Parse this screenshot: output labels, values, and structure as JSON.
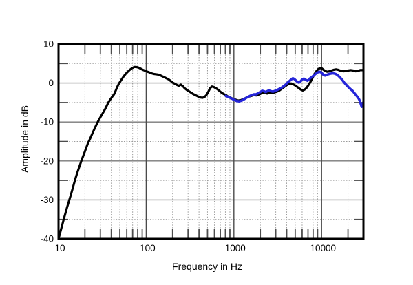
{
  "colors": {
    "background": "#ffffff",
    "border": "#000000",
    "grid_major_h": "#7a7a7a",
    "grid_major_v": "#4a4a4a",
    "grid_minor": "#999999",
    "tick": "#4d4d4d",
    "text": "#000000"
  },
  "chart_data": {
    "type": "line",
    "title": "",
    "xlabel": "Frequency in Hz",
    "ylabel": "Amplitude in dB",
    "x_scale": "log",
    "xlim": [
      10,
      30000
    ],
    "ylim": [
      -40,
      10
    ],
    "grid": {
      "x_major": [
        100,
        1000,
        10000
      ],
      "x_minor": [
        20,
        30,
        40,
        50,
        60,
        70,
        80,
        90,
        200,
        300,
        400,
        500,
        600,
        700,
        800,
        900,
        2000,
        3000,
        4000,
        5000,
        6000,
        7000,
        8000,
        9000,
        20000
      ],
      "y_major": [
        0,
        -10,
        -20,
        -30
      ],
      "y_minor": [
        5,
        -5,
        -15,
        -25,
        -35
      ]
    },
    "x_tick_labels": [
      {
        "value": 10,
        "label": "10"
      },
      {
        "value": 100,
        "label": "100"
      },
      {
        "value": 1000,
        "label": "1000"
      },
      {
        "value": 10000,
        "label": "10000"
      }
    ],
    "y_tick_labels": [
      {
        "value": 10,
        "label": "10"
      },
      {
        "value": 0,
        "label": "0"
      },
      {
        "value": -10,
        "label": "-10"
      },
      {
        "value": -20,
        "label": "-20"
      },
      {
        "value": -30,
        "label": "-30"
      },
      {
        "value": -40,
        "label": "-40"
      }
    ],
    "legend": "none",
    "series": [
      {
        "name": "black-trace",
        "color": "#000000",
        "width": 3.2,
        "points": [
          [
            10,
            -40
          ],
          [
            10.5,
            -38.2
          ],
          [
            11,
            -36.5
          ],
          [
            11.5,
            -34.9
          ],
          [
            12,
            -33.4
          ],
          [
            12.5,
            -32
          ],
          [
            13,
            -30.7
          ],
          [
            14,
            -28.3
          ],
          [
            15,
            -25.9
          ],
          [
            15.7,
            -24.3
          ],
          [
            16.5,
            -22.8
          ],
          [
            17.5,
            -21.1
          ],
          [
            18.5,
            -19.6
          ],
          [
            19.5,
            -18.2
          ],
          [
            20.5,
            -16.9
          ],
          [
            21.5,
            -15.6
          ],
          [
            23,
            -14.2
          ],
          [
            24.5,
            -12.8
          ],
          [
            26,
            -11.5
          ],
          [
            28,
            -10
          ],
          [
            30,
            -8.8
          ],
          [
            32,
            -7.7
          ],
          [
            34,
            -6.7
          ],
          [
            37,
            -5
          ],
          [
            39,
            -4.2
          ],
          [
            41,
            -3.5
          ],
          [
            43,
            -2.9
          ],
          [
            45,
            -1.9
          ],
          [
            47,
            -0.9
          ],
          [
            49,
            -0.1
          ],
          [
            52,
            0.8
          ],
          [
            55,
            1.6
          ],
          [
            58,
            2.3
          ],
          [
            61,
            2.8
          ],
          [
            65,
            3.4
          ],
          [
            69,
            3.8
          ],
          [
            73,
            4.1
          ],
          [
            77,
            4.1
          ],
          [
            81,
            4
          ],
          [
            86,
            3.7
          ],
          [
            91,
            3.4
          ],
          [
            96,
            3.2
          ],
          [
            100,
            3
          ],
          [
            107,
            2.8
          ],
          [
            115,
            2.5
          ],
          [
            123,
            2.3
          ],
          [
            132,
            2.2
          ],
          [
            141,
            2.1
          ],
          [
            150,
            1.8
          ],
          [
            160,
            1.5
          ],
          [
            170,
            1.2
          ],
          [
            181,
            0.9
          ],
          [
            191,
            0.5
          ],
          [
            200,
            0.1
          ],
          [
            212,
            -0.2
          ],
          [
            224,
            -0.5
          ],
          [
            236,
            -0.7
          ],
          [
            248,
            -0.4
          ],
          [
            261,
            -0.8
          ],
          [
            276,
            -1.4
          ],
          [
            291,
            -1.8
          ],
          [
            306,
            -2.1
          ],
          [
            322,
            -2.4
          ],
          [
            341,
            -2.8
          ],
          [
            362,
            -3.1
          ],
          [
            386,
            -3.4
          ],
          [
            411,
            -3.7
          ],
          [
            436,
            -3.8
          ],
          [
            461,
            -3.6
          ],
          [
            486,
            -3.1
          ],
          [
            511,
            -2.2
          ],
          [
            536,
            -1.3
          ],
          [
            561,
            -0.9
          ],
          [
            586,
            -1
          ],
          [
            611,
            -1.2
          ],
          [
            641,
            -1.5
          ],
          [
            676,
            -1.9
          ],
          [
            716,
            -2.4
          ],
          [
            761,
            -2.8
          ],
          [
            811,
            -3.1
          ],
          [
            861,
            -3.5
          ],
          [
            921,
            -3.8
          ],
          [
            981,
            -4.1
          ],
          [
            1050,
            -4.3
          ],
          [
            1120,
            -4.5
          ],
          [
            1200,
            -4.4
          ],
          [
            1290,
            -4.1
          ],
          [
            1380,
            -3.8
          ],
          [
            1480,
            -3.5
          ],
          [
            1580,
            -3.3
          ],
          [
            1700,
            -3.1
          ],
          [
            1800,
            -3.2
          ],
          [
            1900,
            -3
          ],
          [
            2000,
            -2.8
          ],
          [
            2110,
            -2.5
          ],
          [
            2250,
            -2.4
          ],
          [
            2400,
            -2.7
          ],
          [
            2550,
            -2.5
          ],
          [
            2700,
            -2.6
          ],
          [
            2900,
            -2.4
          ],
          [
            3100,
            -2.2
          ],
          [
            3300,
            -1.9
          ],
          [
            3500,
            -1.5
          ],
          [
            3700,
            -1.1
          ],
          [
            3900,
            -0.7
          ],
          [
            4100,
            -0.4
          ],
          [
            4300,
            -0.2
          ],
          [
            4500,
            -0.1
          ],
          [
            4700,
            -0.3
          ],
          [
            4900,
            -0.5
          ],
          [
            5200,
            -0.9
          ],
          [
            5500,
            -1.3
          ],
          [
            5800,
            -1.7
          ],
          [
            6100,
            -1.9
          ],
          [
            6400,
            -1.7
          ],
          [
            6700,
            -1.3
          ],
          [
            7000,
            -0.7
          ],
          [
            7300,
            -0.1
          ],
          [
            7600,
            0.6
          ],
          [
            7900,
            1.4
          ],
          [
            8300,
            2.3
          ],
          [
            8700,
            3
          ],
          [
            9100,
            3.5
          ],
          [
            9500,
            3.8
          ],
          [
            10000,
            3.8
          ],
          [
            10500,
            3.4
          ],
          [
            11000,
            3.1
          ],
          [
            11600,
            2.9
          ],
          [
            12300,
            3
          ],
          [
            13000,
            3.2
          ],
          [
            13800,
            3.4
          ],
          [
            14600,
            3.5
          ],
          [
            15400,
            3.4
          ],
          [
            16200,
            3.2
          ],
          [
            17100,
            3.1
          ],
          [
            18000,
            3
          ],
          [
            19000,
            3.1
          ],
          [
            20000,
            3.2
          ],
          [
            21500,
            3.3
          ],
          [
            23000,
            3.2
          ],
          [
            24500,
            3
          ],
          [
            26000,
            3.1
          ],
          [
            27500,
            3.3
          ],
          [
            29000,
            3.3
          ],
          [
            30000,
            3.4
          ]
        ]
      },
      {
        "name": "blue-trace",
        "color": "#2626d9",
        "width": 3.6,
        "points": [
          [
            810,
            -3.3
          ],
          [
            870,
            -3.6
          ],
          [
            930,
            -3.9
          ],
          [
            1000,
            -4.3
          ],
          [
            1070,
            -4.6
          ],
          [
            1150,
            -4.7
          ],
          [
            1230,
            -4.5
          ],
          [
            1320,
            -4.1
          ],
          [
            1410,
            -3.7
          ],
          [
            1500,
            -3.4
          ],
          [
            1600,
            -3.1
          ],
          [
            1700,
            -2.9
          ],
          [
            1800,
            -2.9
          ],
          [
            1900,
            -2.6
          ],
          [
            2000,
            -2.3
          ],
          [
            2100,
            -2
          ],
          [
            2200,
            -2.1
          ],
          [
            2300,
            -2.3
          ],
          [
            2400,
            -2.1
          ],
          [
            2500,
            -1.9
          ],
          [
            2650,
            -2.1
          ],
          [
            2800,
            -2.2
          ],
          [
            2950,
            -2
          ],
          [
            3100,
            -1.8
          ],
          [
            3300,
            -1.5
          ],
          [
            3500,
            -1.2
          ],
          [
            3700,
            -0.8
          ],
          [
            3900,
            -0.4
          ],
          [
            4100,
            0.1
          ],
          [
            4300,
            0.5
          ],
          [
            4500,
            0.9
          ],
          [
            4700,
            1.2
          ],
          [
            4900,
            1
          ],
          [
            5100,
            0.6
          ],
          [
            5300,
            0.3
          ],
          [
            5500,
            0.1
          ],
          [
            5700,
            0.3
          ],
          [
            5900,
            0.7
          ],
          [
            6100,
            1
          ],
          [
            6300,
            1.1
          ],
          [
            6500,
            0.9
          ],
          [
            6700,
            0.7
          ],
          [
            6900,
            0.6
          ],
          [
            7100,
            0.8
          ],
          [
            7300,
            1.1
          ],
          [
            7600,
            1.4
          ],
          [
            7900,
            1.7
          ],
          [
            8200,
            2
          ],
          [
            8600,
            2.4
          ],
          [
            9000,
            2.7
          ],
          [
            9400,
            2.9
          ],
          [
            9800,
            2.8
          ],
          [
            10200,
            2.4
          ],
          [
            10600,
            2
          ],
          [
            11000,
            1.9
          ],
          [
            11500,
            2.1
          ],
          [
            12100,
            2.3
          ],
          [
            12700,
            2.4
          ],
          [
            13400,
            2.5
          ],
          [
            14100,
            2.4
          ],
          [
            14800,
            2.2
          ],
          [
            15600,
            1.8
          ],
          [
            16400,
            1.3
          ],
          [
            17200,
            0.8
          ],
          [
            18000,
            0.2
          ],
          [
            18800,
            -0.3
          ],
          [
            19600,
            -0.7
          ],
          [
            20500,
            -1.2
          ],
          [
            21500,
            -1.6
          ],
          [
            22500,
            -2
          ],
          [
            23500,
            -2.5
          ],
          [
            24500,
            -3
          ],
          [
            25500,
            -3.5
          ],
          [
            26500,
            -4
          ],
          [
            27300,
            -4.6
          ],
          [
            28000,
            -5.4
          ],
          [
            28600,
            -6.1
          ],
          [
            29100,
            -5.8
          ],
          [
            29500,
            -5.2
          ],
          [
            29800,
            -5
          ]
        ]
      }
    ]
  }
}
